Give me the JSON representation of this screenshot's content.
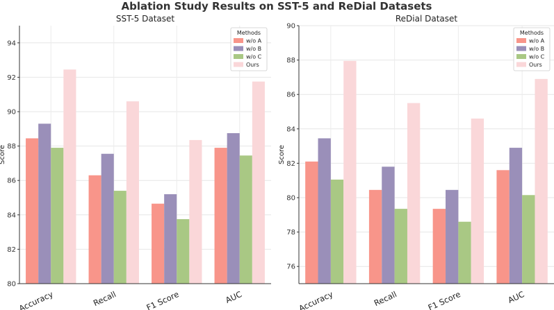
{
  "title": "Ablation Study Results on SST-5 and ReDial Datasets",
  "colors": {
    "w/o A": "#f8958a",
    "w/o B": "#9a8fb9",
    "w/o C": "#a9c884",
    "Ours": "#fad7d9"
  },
  "chart_data": [
    {
      "type": "bar",
      "title": "SST-5 Dataset",
      "xlabel": "",
      "ylabel": "Score",
      "ylim": [
        80,
        95
      ],
      "yticks": [
        80,
        82,
        84,
        86,
        88,
        90,
        92,
        94
      ],
      "categories": [
        "Accuracy",
        "Recall",
        "F1 Score",
        "AUC"
      ],
      "legend_title": "Methods",
      "legend_position": "top-right",
      "grid": true,
      "series": [
        {
          "name": "w/o A",
          "values": [
            88.45,
            86.3,
            84.65,
            87.9
          ]
        },
        {
          "name": "w/o B",
          "values": [
            89.3,
            87.55,
            85.2,
            88.75
          ]
        },
        {
          "name": "w/o C",
          "values": [
            87.9,
            85.4,
            83.75,
            87.45
          ]
        },
        {
          "name": "Ours",
          "values": [
            92.45,
            90.6,
            88.35,
            91.75
          ]
        }
      ]
    },
    {
      "type": "bar",
      "title": "ReDial Dataset",
      "xlabel": "",
      "ylabel": "Score",
      "ylim": [
        75,
        90
      ],
      "yticks": [
        76,
        78,
        80,
        82,
        84,
        86,
        88,
        90
      ],
      "categories": [
        "Accuracy",
        "Recall",
        "F1 Score",
        "AUC"
      ],
      "legend_title": "Methods",
      "legend_position": "top-right",
      "grid": true,
      "series": [
        {
          "name": "w/o A",
          "values": [
            82.1,
            80.45,
            79.35,
            81.6
          ]
        },
        {
          "name": "w/o B",
          "values": [
            83.45,
            81.8,
            80.45,
            82.9
          ]
        },
        {
          "name": "w/o C",
          "values": [
            81.05,
            79.35,
            78.6,
            80.15
          ]
        },
        {
          "name": "Ours",
          "values": [
            87.95,
            85.5,
            84.6,
            86.9
          ]
        }
      ]
    }
  ]
}
